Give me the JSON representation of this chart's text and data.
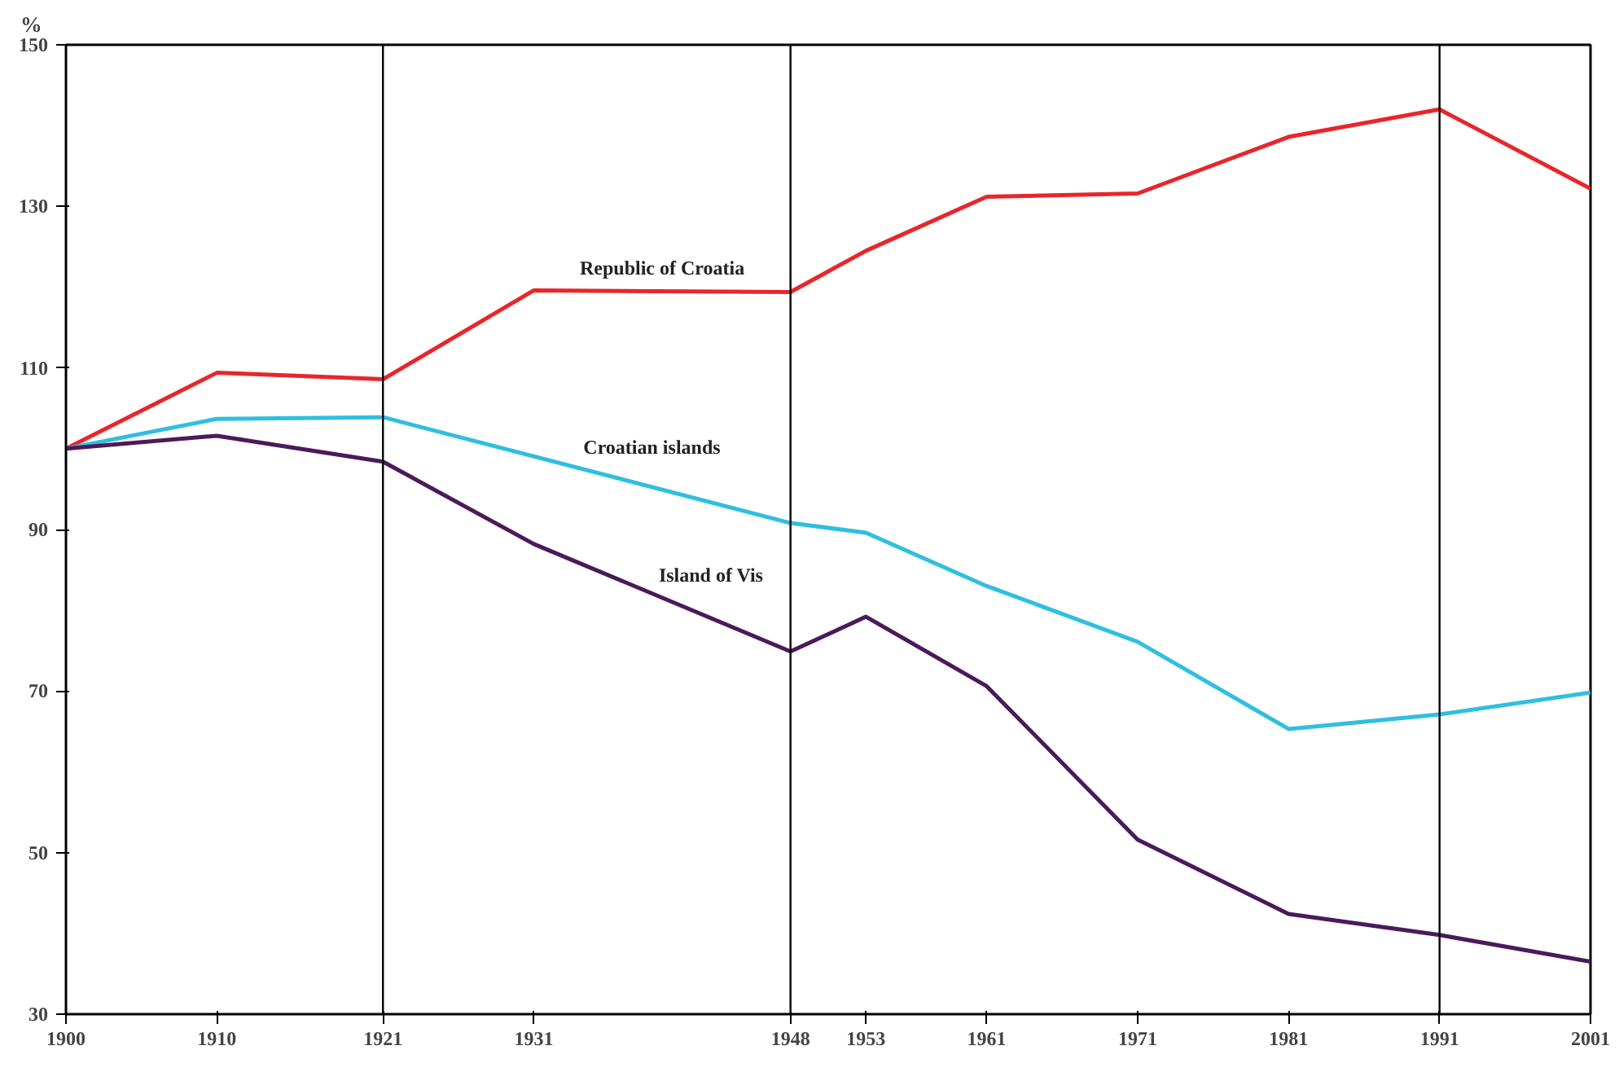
{
  "chart_data": {
    "type": "line",
    "ylabel": "%",
    "xlim": [
      1900,
      2001
    ],
    "ylim": [
      30,
      150
    ],
    "xticks": [
      1900,
      1910,
      1921,
      1931,
      1948,
      1953,
      1961,
      1971,
      1981,
      1991,
      2001
    ],
    "yticks": [
      30,
      50,
      70,
      90,
      110,
      130,
      150
    ],
    "grid": false,
    "marker": "none",
    "line_style": "solid",
    "series": [
      {
        "name": "Republic of Croatia",
        "color": "#e8262b",
        "x": [
          1900,
          1910,
          1921,
          1931,
          1948,
          1953,
          1961,
          1971,
          1981,
          1991,
          2001
        ],
        "values": [
          100,
          109.4,
          108.6,
          119.6,
          119.4,
          124.5,
          131.2,
          131.6,
          138.6,
          142,
          132.2
        ]
      },
      {
        "name": "Croatian islands",
        "color": "#2fbfdf",
        "x": [
          1900,
          1910,
          1921,
          1948,
          1953,
          1961,
          1971,
          1981,
          1991,
          2001
        ],
        "values": [
          100,
          103.7,
          103.9,
          90.8,
          89.6,
          83,
          76.1,
          65.3,
          67.1,
          69.8
        ]
      },
      {
        "name": "Island of Vis",
        "color": "#4b1a5a",
        "x": [
          1900,
          1910,
          1921,
          1931,
          1948,
          1953,
          1961,
          1971,
          1981,
          1991,
          2001
        ],
        "values": [
          100,
          101.6,
          98.4,
          88.2,
          74.9,
          79.2,
          70.6,
          51.6,
          42.4,
          39.8,
          36.5
        ]
      }
    ],
    "ref_lines": [
      {
        "axis": "x",
        "value": 1921,
        "color": "#000000"
      },
      {
        "axis": "x",
        "value": 1948,
        "color": "#000000"
      },
      {
        "axis": "x",
        "value": 1991,
        "color": "#000000"
      }
    ]
  }
}
